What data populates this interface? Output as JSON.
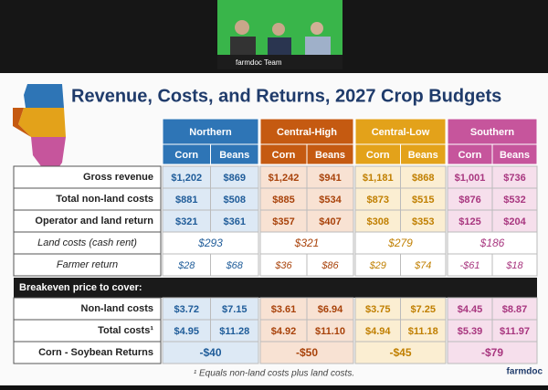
{
  "video": {
    "label": "farmdoc Team"
  },
  "title": "Revenue, Costs, and Returns, 2027 Crop Budgets",
  "table": {
    "groups": [
      {
        "name": "Northern",
        "color": "#2e75b6",
        "text_color": "#1f5c99",
        "tint": "#dde9f5"
      },
      {
        "name": "Central-High",
        "color": "#c55a11",
        "text_color": "#a8420a",
        "tint": "#f8e2d3"
      },
      {
        "name": "Central-Low",
        "color": "#e3a21a",
        "text_color": "#c07f00",
        "tint": "#fbeed2"
      },
      {
        "name": "Southern",
        "color": "#c6559c",
        "text_color": "#a8367f",
        "tint": "#f6dfec"
      }
    ],
    "subheaders": [
      "Corn",
      "Beans"
    ],
    "rows": [
      {
        "label": "Gross revenue",
        "italic": false,
        "cells": [
          "$1,202",
          "$869",
          "$1,242",
          "$941",
          "$1,181",
          "$868",
          "$1,001",
          "$736"
        ]
      },
      {
        "label": "Total non-land costs",
        "italic": false,
        "cells": [
          "$881",
          "$508",
          "$885",
          "$534",
          "$873",
          "$515",
          "$876",
          "$532"
        ]
      },
      {
        "label": "Operator and land return",
        "italic": false,
        "cells": [
          "$321",
          "$361",
          "$357",
          "$407",
          "$308",
          "$353",
          "$125",
          "$204"
        ]
      },
      {
        "label": "Land costs (cash rent)",
        "italic": true,
        "cells": [
          "$293",
          "$321",
          "$279",
          "$186"
        ]
      },
      {
        "label": "Farmer return",
        "italic": true,
        "cells": [
          "$28",
          "$68",
          "$36",
          "$86",
          "$29",
          "$74",
          "-$61",
          "$18"
        ]
      }
    ],
    "section": "Breakeven price to cover:",
    "breakeven_rows": [
      {
        "label": "Non-land costs",
        "italic": false,
        "cells": [
          "$3.72",
          "$7.15",
          "$3.61",
          "$6.94",
          "$3.75",
          "$7.25",
          "$4.45",
          "$8.87"
        ]
      },
      {
        "label": "Total costs¹",
        "italic": false,
        "cells": [
          "$4.95",
          "$11.28",
          "$4.92",
          "$11.10",
          "$4.94",
          "$11.18",
          "$5.39",
          "$11.97"
        ]
      },
      {
        "label": "Corn - Soybean Returns",
        "italic": false,
        "cells": [
          "-$40",
          "-$50",
          "-$45",
          "-$79"
        ]
      }
    ]
  },
  "footnote": "¹ Equals non-land costs plus land costs.",
  "logo": "farmdoc"
}
